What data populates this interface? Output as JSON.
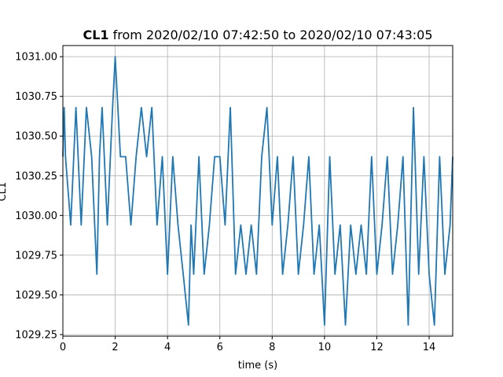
{
  "chart_data": {
    "type": "line",
    "title_bold": "CL1",
    "title_rest": " from 2020/02/10 07:42:50 to 2020/02/10 07:43:05",
    "xlabel": "time (s)",
    "ylabel": "CL1",
    "xlim": [
      0,
      14.9
    ],
    "ylim": [
      1029.24,
      1031.07
    ],
    "xticks": [
      0,
      2,
      4,
      6,
      8,
      10,
      12,
      14
    ],
    "xtick_labels": [
      "0",
      "2",
      "4",
      "6",
      "8",
      "10",
      "12",
      "14"
    ],
    "yticks": [
      1029.25,
      1029.5,
      1029.75,
      1030.0,
      1030.25,
      1030.5,
      1030.75,
      1031.0
    ],
    "ytick_labels": [
      "1029.25",
      "1029.50",
      "1029.75",
      "1030.00",
      "1030.25",
      "1030.50",
      "1030.75",
      "1031.00"
    ],
    "grid": true,
    "series": [
      {
        "color": "#1f77b4",
        "x": [
          0.0,
          0.05,
          0.1,
          0.3,
          0.5,
          0.7,
          0.9,
          1.1,
          1.3,
          1.4,
          1.5,
          1.7,
          1.9,
          2.0,
          2.2,
          2.4,
          2.6,
          2.8,
          3.0,
          3.2,
          3.4,
          3.6,
          3.8,
          4.0,
          4.2,
          4.4,
          4.6,
          4.8,
          4.9,
          5.0,
          5.2,
          5.4,
          5.6,
          5.8,
          6.0,
          6.2,
          6.4,
          6.6,
          6.8,
          7.0,
          7.2,
          7.4,
          7.6,
          7.8,
          8.0,
          8.2,
          8.4,
          8.6,
          8.8,
          9.0,
          9.2,
          9.4,
          9.6,
          9.8,
          10.0,
          10.2,
          10.4,
          10.6,
          10.8,
          11.0,
          11.2,
          11.4,
          11.6,
          11.8,
          12.0,
          12.2,
          12.4,
          12.6,
          12.8,
          13.0,
          13.2,
          13.4,
          13.6,
          13.8,
          14.0,
          14.2,
          14.4,
          14.6,
          14.8,
          14.9
        ],
        "y": [
          1030.37,
          1030.68,
          1030.37,
          1029.94,
          1030.68,
          1029.94,
          1030.68,
          1030.37,
          1029.63,
          1030.37,
          1030.68,
          1029.94,
          1030.68,
          1031.0,
          1030.37,
          1030.37,
          1029.94,
          1030.37,
          1030.68,
          1030.37,
          1030.68,
          1029.94,
          1030.37,
          1029.63,
          1030.37,
          1029.94,
          1029.63,
          1029.31,
          1029.94,
          1029.63,
          1030.37,
          1029.63,
          1029.94,
          1030.37,
          1030.37,
          1029.94,
          1030.68,
          1029.63,
          1029.94,
          1029.63,
          1029.94,
          1029.63,
          1030.37,
          1030.68,
          1029.94,
          1030.37,
          1029.63,
          1029.94,
          1030.37,
          1029.63,
          1029.94,
          1030.37,
          1029.63,
          1029.94,
          1029.31,
          1030.37,
          1029.63,
          1029.94,
          1029.31,
          1029.94,
          1029.63,
          1029.94,
          1029.63,
          1030.37,
          1029.63,
          1029.94,
          1030.37,
          1029.63,
          1029.94,
          1030.37,
          1029.31,
          1030.68,
          1029.63,
          1030.37,
          1029.63,
          1029.31,
          1030.37,
          1029.63,
          1029.94,
          1030.37
        ]
      }
    ]
  }
}
